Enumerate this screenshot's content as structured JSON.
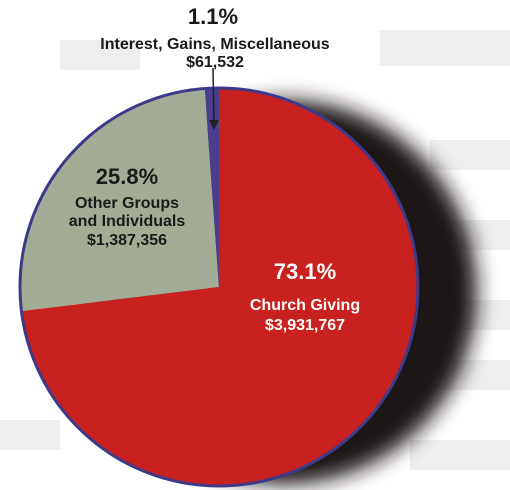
{
  "chart_data": {
    "type": "pie",
    "slices": [
      {
        "percent_label": "73.1%",
        "label_lines": [
          "Church Giving"
        ],
        "amount_label": "$3,931,767",
        "value": 3931767,
        "color": "#c8211f",
        "label_color": "#ffffff"
      },
      {
        "percent_label": "25.8%",
        "label_lines": [
          "Other Groups",
          "and Individuals"
        ],
        "amount_label": "$1,387,356",
        "value": 1387356,
        "color": "#a3ad96",
        "label_color": "#1a1a1a"
      },
      {
        "percent_label": "1.1%",
        "label_lines": [
          "Interest, Gains, Miscellaneous"
        ],
        "amount_label": "$61,532",
        "value": 61532,
        "color": "#4a3f8c",
        "label_color": "#1a1a1a"
      }
    ],
    "start_angle_deg": 0,
    "direction": "clockwise",
    "outline_color": "#3d3a8a",
    "shadow_color": "#1a1413",
    "page_background": "#ffffff",
    "faded_background_text_color": "#eeeeee"
  }
}
